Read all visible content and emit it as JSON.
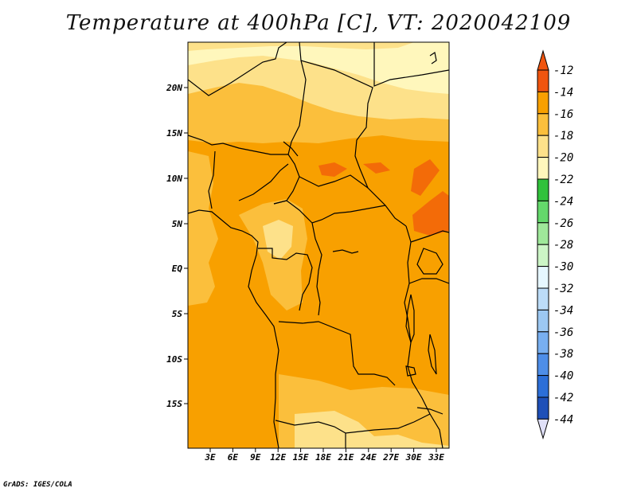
{
  "title": "Temperature at 400hPa [C], VT: 2020042109",
  "credit": "GrADS: IGES/COLA",
  "map": {
    "lat_labels": [
      "20N",
      "15N",
      "10N",
      "5N",
      "EQ",
      "5S",
      "10S",
      "15S"
    ],
    "lon_labels": [
      "3E",
      "6E",
      "9E",
      "12E",
      "15E",
      "18E",
      "21E",
      "24E",
      "27E",
      "30E",
      "33E"
    ],
    "shading_colors": {
      "-12_to_-14": "#f36b08",
      "-14_to_-16": "#f8a000",
      "-16_to_-18": "#fbbf3c",
      "-18_to_-20": "#fde18a",
      "-20_to_-22": "#fff7bc"
    },
    "border_color": "#000000"
  },
  "colorbar": {
    "labels": [
      "-12",
      "-14",
      "-16",
      "-18",
      "-20",
      "-22",
      "-24",
      "-26",
      "-28",
      "-30",
      "-32",
      "-34",
      "-36",
      "-38",
      "-40",
      "-42",
      "-44"
    ],
    "colors": [
      "#f0550f",
      "#f8a000",
      "#fbbf3c",
      "#fde18a",
      "#fff7bc",
      "#31c23b",
      "#64d86b",
      "#9fe89a",
      "#ccf5c6",
      "#e6f7ff",
      "#bcdcf8",
      "#9cc8f2",
      "#78aff0",
      "#4e8ee8",
      "#2c6fd8",
      "#1e50b8",
      "#0a1a78"
    ],
    "top_arrow_color": "#f0550f",
    "bottom_arrow_color": "#e0e0f8"
  }
}
